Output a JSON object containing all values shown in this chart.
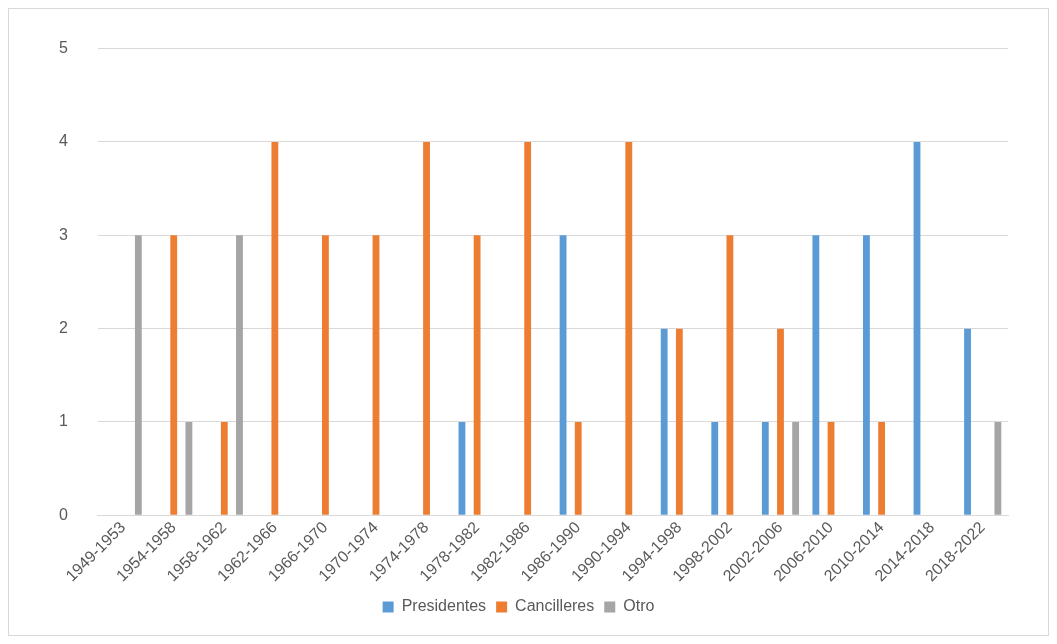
{
  "chart_data": {
    "type": "bar",
    "categories": [
      "1949-1953",
      "1954-1958",
      "1958-1962",
      "1962-1966",
      "1966-1970",
      "1970-1974",
      "1974-1978",
      "1978-1982",
      "1982-1986",
      "1986-1990",
      "1990-1994",
      "1994-1998",
      "1998-2002",
      "2002-2006",
      "2006-2010",
      "2010-2014",
      "2014-2018",
      "2018-2022"
    ],
    "series": [
      {
        "name": "Presidentes",
        "color": "#5b9bd5",
        "values": [
          0,
          0,
          0,
          0,
          0,
          0,
          0,
          1,
          0,
          3,
          0,
          2,
          1,
          1,
          3,
          3,
          4,
          2
        ]
      },
      {
        "name": "Cancilleres",
        "color": "#ed7d31",
        "values": [
          0,
          3,
          1,
          4,
          3,
          3,
          4,
          3,
          4,
          1,
          4,
          2,
          3,
          2,
          1,
          1,
          0,
          0
        ]
      },
      {
        "name": "Otro",
        "color": "#a5a5a5",
        "values": [
          3,
          1,
          3,
          0,
          0,
          0,
          0,
          0,
          0,
          0,
          0,
          0,
          0,
          1,
          0,
          0,
          0,
          1
        ]
      }
    ],
    "ylim": [
      0,
      5
    ],
    "yticks": [
      0,
      1,
      2,
      3,
      4,
      5
    ],
    "grid": "y",
    "legend": "bottom"
  }
}
